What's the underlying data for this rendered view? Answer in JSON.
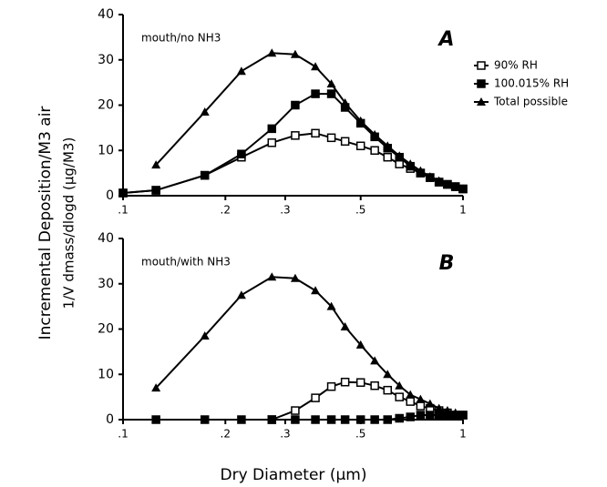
{
  "chart_data": [
    {
      "type": "line",
      "annotation": "mouth/no NH3",
      "panel_label": "A",
      "xscale": "log",
      "xlim": [
        0.1,
        1
      ],
      "ylim": [
        0,
        40
      ],
      "xticks": [
        {
          "value": 0.1,
          "label": ".1"
        },
        {
          "value": 0.2,
          "label": ".2"
        },
        {
          "value": 0.3,
          "label": ".3"
        },
        {
          "value": 0.5,
          "label": ".5"
        },
        1
      ],
      "yticks": [
        0,
        10,
        20,
        30,
        40
      ],
      "x": [
        0.1,
        0.125,
        0.174,
        0.223,
        0.274,
        0.321,
        0.368,
        0.41,
        0.45,
        0.5,
        0.55,
        0.6,
        0.65,
        0.7,
        0.75,
        0.8,
        0.85,
        0.9,
        0.95,
        1.0
      ],
      "series": [
        {
          "name": "90% RH",
          "marker": "open-square",
          "color": "#000000",
          "values": [
            0.6,
            1.2,
            4.5,
            8.5,
            11.7,
            13.3,
            13.8,
            12.8,
            12,
            11,
            10,
            8.5,
            7,
            6,
            5,
            4,
            3,
            2.5,
            2,
            1.5
          ]
        },
        {
          "name": "100.015% RH",
          "marker": "filled-square",
          "color": "#000000",
          "values": [
            0.6,
            1.2,
            4.5,
            9.2,
            14.8,
            20,
            22.5,
            22.5,
            19.5,
            16,
            13,
            10.5,
            8.5,
            6.5,
            5,
            4,
            3,
            2.5,
            2,
            1.5
          ]
        },
        {
          "name": "Total possible",
          "marker": "triangle",
          "color": "#000000",
          "values": [
            null,
            6.8,
            18.5,
            27.5,
            31.5,
            31.2,
            28.5,
            24.7,
            20.5,
            16.5,
            13.5,
            11,
            8.8,
            7,
            5.5,
            4.2,
            3.3,
            2.5,
            2,
            1.5
          ]
        }
      ]
    },
    {
      "type": "line",
      "annotation": "mouth/with NH3",
      "panel_label": "B",
      "xscale": "log",
      "xlim": [
        0.1,
        1
      ],
      "ylim": [
        0,
        40
      ],
      "xticks": [
        {
          "value": 0.1,
          "label": ".1"
        },
        {
          "value": 0.2,
          "label": ".2"
        },
        {
          "value": 0.3,
          "label": ".3"
        },
        {
          "value": 0.5,
          "label": ".5"
        },
        1
      ],
      "yticks": [
        0,
        10,
        20,
        30,
        40
      ],
      "x": [
        0.1,
        0.125,
        0.174,
        0.223,
        0.274,
        0.321,
        0.368,
        0.41,
        0.45,
        0.5,
        0.55,
        0.6,
        0.65,
        0.7,
        0.75,
        0.8,
        0.85,
        0.9,
        0.95,
        1.0
      ],
      "series": [
        {
          "marker": "open-square",
          "color": "#000000",
          "values": [
            null,
            null,
            null,
            null,
            0,
            2,
            4.8,
            7.3,
            8.3,
            8.2,
            7.5,
            6.5,
            5,
            4,
            3,
            2.5,
            2,
            1.5,
            1,
            1
          ]
        },
        {
          "marker": "filled-square",
          "color": "#000000",
          "values": [
            null,
            0,
            0,
            0,
            0,
            0,
            0,
            0,
            0,
            0,
            0,
            0,
            0.3,
            0.6,
            1,
            1,
            1,
            1,
            1,
            1
          ]
        },
        {
          "marker": "triangle",
          "color": "#000000",
          "values": [
            null,
            7,
            18.5,
            27.5,
            31.5,
            31.2,
            28.5,
            25,
            20.5,
            16.5,
            13,
            10,
            7.5,
            5.5,
            4.5,
            3.5,
            2.5,
            2,
            1.5,
            1
          ]
        }
      ]
    }
  ],
  "ylabel": [
    "Incremental Deposition/M3 air",
    "1/V dmass/dlogd (µg/M3)"
  ],
  "xlabel": "Dry Diameter (µm)"
}
